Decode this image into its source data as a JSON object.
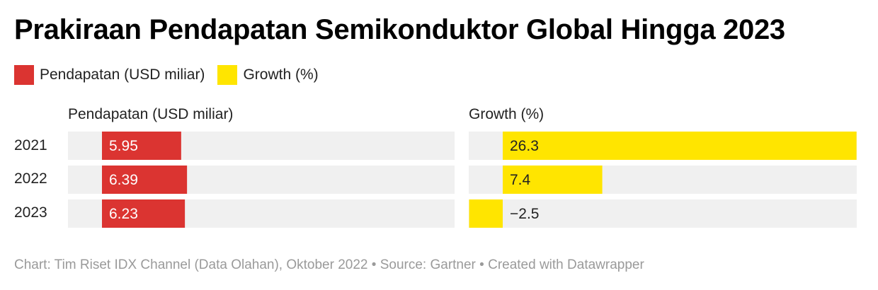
{
  "title": "Prakiraan Pendapatan Semikonduktor Global Hingga 2023",
  "legend": [
    {
      "label": "Pendapatan (USD miliar)",
      "color": "#db3431"
    },
    {
      "label": "Growth (%)",
      "color": "#ffe500"
    }
  ],
  "footer": "Chart: Tim Riset IDX Channel (Data Olahan), Oktober 2022 • Source: Gartner • Created with Datawrapper",
  "chart_data": {
    "type": "bar",
    "orientation": "horizontal",
    "categories": [
      "2021",
      "2022",
      "2023"
    ],
    "panels": [
      {
        "title": "Pendapatan (USD miliar)",
        "color": "#db3431",
        "values": [
          5.95,
          6.39,
          6.23
        ],
        "labels": [
          "5.95",
          "6.39",
          "6.23"
        ]
      },
      {
        "title": "Growth (%)",
        "color": "#ffe500",
        "values": [
          26.3,
          7.4,
          -2.5
        ],
        "labels": [
          "26.3",
          "7.4",
          "−2.5"
        ]
      }
    ],
    "background_color": "#f0f0f0"
  }
}
